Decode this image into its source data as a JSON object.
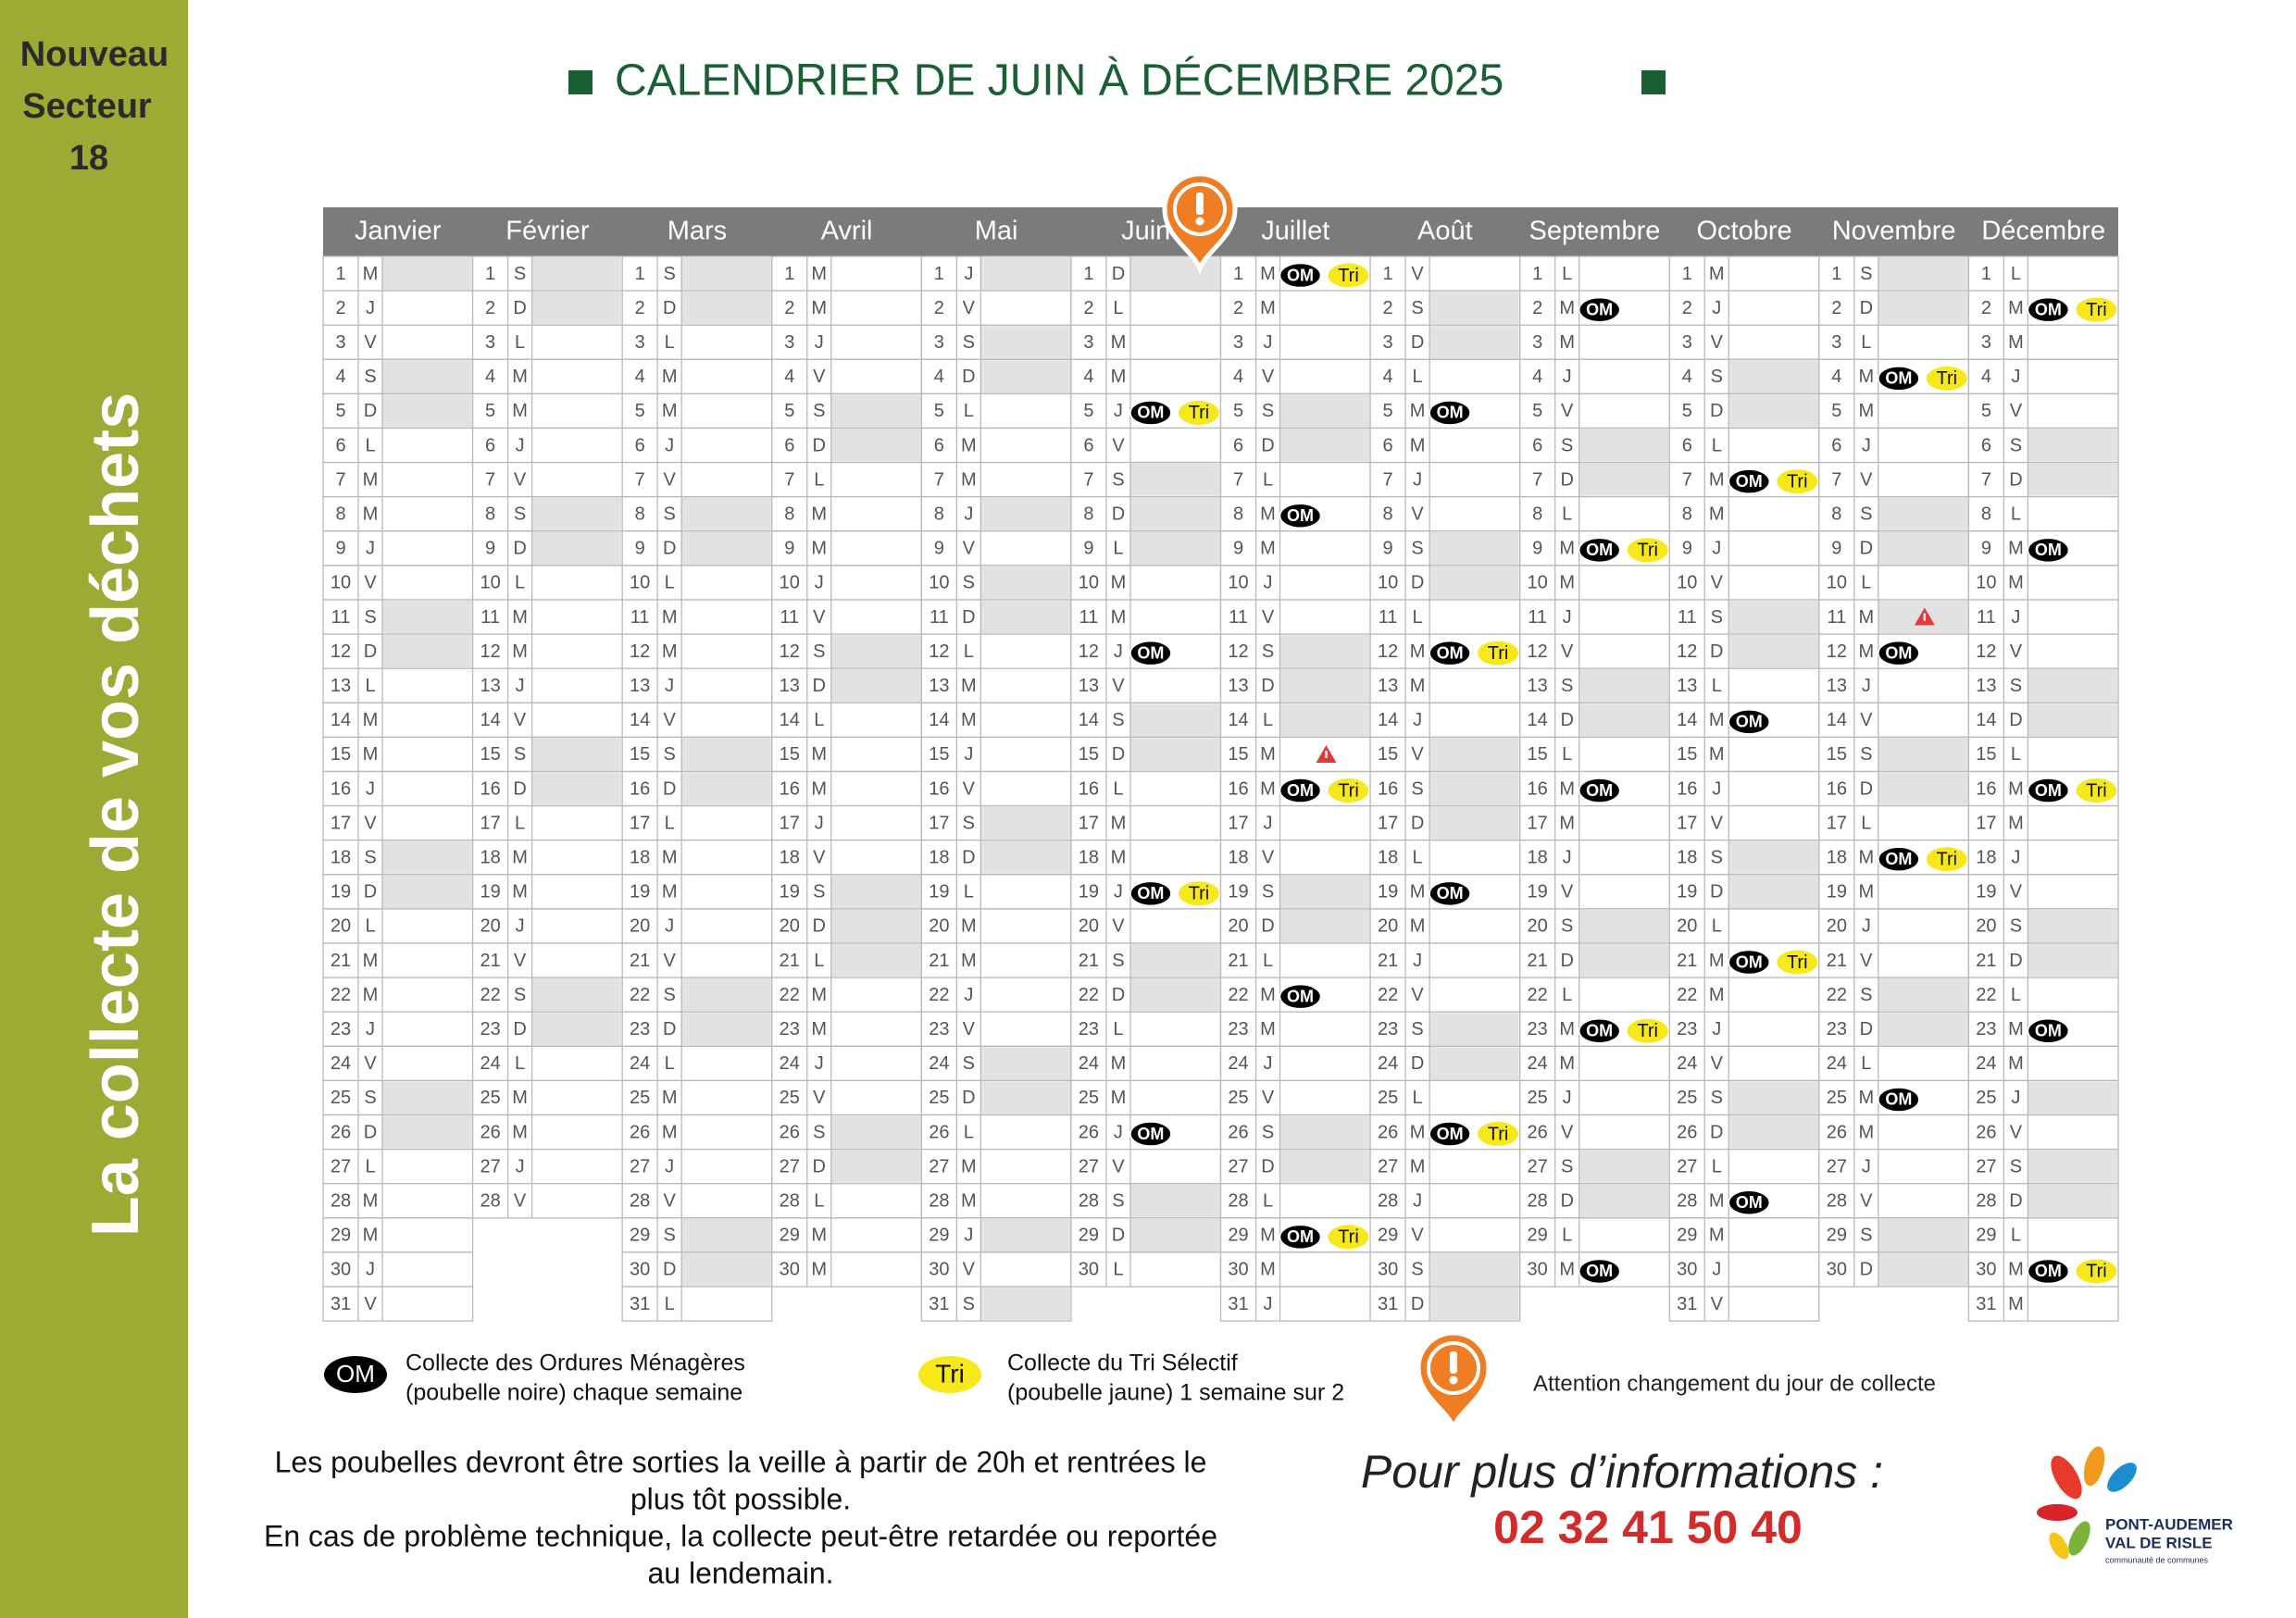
{
  "sidebar": {
    "label_lines": [
      "Nouveau",
      "Secteur",
      "18"
    ],
    "vertical_title": "La collecte de vos déchets"
  },
  "title": "CALENDRIER DE JUIN À DÉCEMBRE 2025",
  "day_numbers": [
    1,
    2,
    3,
    4,
    5,
    6,
    7,
    8,
    9,
    10,
    11,
    12,
    13,
    14,
    15,
    16,
    17,
    18,
    19,
    20,
    21,
    22,
    23,
    24,
    25,
    26,
    27,
    28,
    29,
    30,
    31
  ],
  "months": [
    {
      "name": "Janvier",
      "days": [
        "M",
        "J",
        "V",
        "S",
        "D",
        "L",
        "M",
        "M",
        "J",
        "V",
        "S",
        "D",
        "L",
        "M",
        "M",
        "J",
        "V",
        "S",
        "D",
        "L",
        "M",
        "M",
        "J",
        "V",
        "S",
        "D",
        "L",
        "M",
        "M",
        "J",
        "V"
      ],
      "shaded": [
        1,
        4,
        5,
        11,
        12,
        18,
        19,
        25,
        26
      ],
      "collections": [],
      "alerts": []
    },
    {
      "name": "Février",
      "days": [
        "S",
        "D",
        "L",
        "M",
        "M",
        "J",
        "V",
        "S",
        "D",
        "L",
        "M",
        "M",
        "J",
        "V",
        "S",
        "D",
        "L",
        "M",
        "M",
        "J",
        "V",
        "S",
        "D",
        "L",
        "M",
        "M",
        "J",
        "V"
      ],
      "shaded": [
        1,
        2,
        8,
        9,
        15,
        16,
        22,
        23
      ],
      "collections": [],
      "alerts": []
    },
    {
      "name": "Mars",
      "days": [
        "S",
        "D",
        "L",
        "M",
        "M",
        "J",
        "V",
        "S",
        "D",
        "L",
        "M",
        "M",
        "J",
        "V",
        "S",
        "D",
        "L",
        "M",
        "M",
        "J",
        "V",
        "S",
        "D",
        "L",
        "M",
        "M",
        "J",
        "V",
        "S",
        "D",
        "L"
      ],
      "shaded": [
        1,
        2,
        8,
        9,
        15,
        16,
        22,
        23,
        29,
        30
      ],
      "collections": [],
      "alerts": []
    },
    {
      "name": "Avril",
      "days": [
        "M",
        "M",
        "J",
        "V",
        "S",
        "D",
        "L",
        "M",
        "M",
        "J",
        "V",
        "S",
        "D",
        "L",
        "M",
        "M",
        "J",
        "V",
        "S",
        "D",
        "L",
        "M",
        "M",
        "J",
        "V",
        "S",
        "D",
        "L",
        "M",
        "M"
      ],
      "shaded": [
        5,
        6,
        12,
        13,
        19,
        20,
        21,
        26,
        27
      ],
      "collections": [],
      "alerts": []
    },
    {
      "name": "Mai",
      "days": [
        "J",
        "V",
        "S",
        "D",
        "L",
        "M",
        "M",
        "J",
        "V",
        "S",
        "D",
        "L",
        "M",
        "M",
        "J",
        "V",
        "S",
        "D",
        "L",
        "M",
        "M",
        "J",
        "V",
        "S",
        "D",
        "L",
        "M",
        "M",
        "J",
        "V",
        "S"
      ],
      "shaded": [
        1,
        3,
        4,
        8,
        10,
        11,
        17,
        18,
        24,
        25,
        29,
        31
      ],
      "collections": [],
      "alerts": []
    },
    {
      "name": "Juin",
      "days": [
        "D",
        "L",
        "M",
        "M",
        "J",
        "V",
        "S",
        "D",
        "L",
        "M",
        "M",
        "J",
        "V",
        "S",
        "D",
        "L",
        "M",
        "M",
        "J",
        "V",
        "S",
        "D",
        "L",
        "M",
        "M",
        "J",
        "V",
        "S",
        "D",
        "L"
      ],
      "shaded": [
        1,
        7,
        8,
        9,
        14,
        15,
        21,
        22,
        28,
        29
      ],
      "collections": [
        {
          "day": 5,
          "items": [
            "OM",
            "Tri"
          ]
        },
        {
          "day": 12,
          "items": [
            "OM"
          ]
        },
        {
          "day": 19,
          "items": [
            "OM",
            "Tri"
          ]
        },
        {
          "day": 26,
          "items": [
            "OM"
          ]
        }
      ],
      "alerts": []
    },
    {
      "name": "Juillet",
      "days": [
        "M",
        "M",
        "J",
        "V",
        "S",
        "D",
        "L",
        "M",
        "M",
        "J",
        "V",
        "S",
        "D",
        "L",
        "M",
        "M",
        "J",
        "V",
        "S",
        "D",
        "L",
        "M",
        "M",
        "J",
        "V",
        "S",
        "D",
        "L",
        "M",
        "M",
        "J"
      ],
      "shaded": [
        5,
        6,
        12,
        13,
        14,
        19,
        20,
        26,
        27
      ],
      "collections": [
        {
          "day": 1,
          "items": [
            "OM",
            "Tri"
          ]
        },
        {
          "day": 8,
          "items": [
            "OM"
          ]
        },
        {
          "day": 16,
          "items": [
            "OM",
            "Tri"
          ]
        },
        {
          "day": 22,
          "items": [
            "OM"
          ]
        },
        {
          "day": 29,
          "items": [
            "OM",
            "Tri"
          ]
        }
      ],
      "alerts": [
        15
      ]
    },
    {
      "name": "Août",
      "days": [
        "V",
        "S",
        "D",
        "L",
        "M",
        "M",
        "J",
        "V",
        "S",
        "D",
        "L",
        "M",
        "M",
        "J",
        "V",
        "S",
        "D",
        "L",
        "M",
        "M",
        "J",
        "V",
        "S",
        "D",
        "L",
        "M",
        "M",
        "J",
        "V",
        "S",
        "D"
      ],
      "shaded": [
        2,
        3,
        9,
        10,
        15,
        16,
        17,
        23,
        24,
        30,
        31
      ],
      "collections": [
        {
          "day": 5,
          "items": [
            "OM"
          ]
        },
        {
          "day": 12,
          "items": [
            "OM",
            "Tri"
          ]
        },
        {
          "day": 19,
          "items": [
            "OM"
          ]
        },
        {
          "day": 26,
          "items": [
            "OM",
            "Tri"
          ]
        }
      ],
      "alerts": []
    },
    {
      "name": "Septembre",
      "days": [
        "L",
        "M",
        "M",
        "J",
        "V",
        "S",
        "D",
        "L",
        "M",
        "M",
        "J",
        "V",
        "S",
        "D",
        "L",
        "M",
        "M",
        "J",
        "V",
        "S",
        "D",
        "L",
        "M",
        "M",
        "J",
        "V",
        "S",
        "D",
        "L",
        "M"
      ],
      "shaded": [
        6,
        7,
        13,
        14,
        20,
        21,
        27,
        28
      ],
      "collections": [
        {
          "day": 2,
          "items": [
            "OM"
          ]
        },
        {
          "day": 9,
          "items": [
            "OM",
            "Tri"
          ]
        },
        {
          "day": 16,
          "items": [
            "OM"
          ]
        },
        {
          "day": 23,
          "items": [
            "OM",
            "Tri"
          ]
        },
        {
          "day": 30,
          "items": [
            "OM"
          ]
        }
      ],
      "alerts": []
    },
    {
      "name": "Octobre",
      "days": [
        "M",
        "J",
        "V",
        "S",
        "D",
        "L",
        "M",
        "M",
        "J",
        "V",
        "S",
        "D",
        "L",
        "M",
        "M",
        "J",
        "V",
        "S",
        "D",
        "L",
        "M",
        "M",
        "J",
        "V",
        "S",
        "D",
        "L",
        "M",
        "M",
        "J",
        "V"
      ],
      "shaded": [
        4,
        5,
        11,
        12,
        18,
        19,
        25,
        26
      ],
      "collections": [
        {
          "day": 7,
          "items": [
            "OM",
            "Tri"
          ]
        },
        {
          "day": 14,
          "items": [
            "OM"
          ]
        },
        {
          "day": 21,
          "items": [
            "OM",
            "Tri"
          ]
        },
        {
          "day": 28,
          "items": [
            "OM"
          ]
        }
      ],
      "alerts": []
    },
    {
      "name": "Novembre",
      "days": [
        "S",
        "D",
        "L",
        "M",
        "M",
        "J",
        "V",
        "S",
        "D",
        "L",
        "M",
        "M",
        "J",
        "V",
        "S",
        "D",
        "L",
        "M",
        "M",
        "J",
        "V",
        "S",
        "D",
        "L",
        "M",
        "M",
        "J",
        "V",
        "S",
        "D"
      ],
      "shaded": [
        1,
        2,
        8,
        9,
        11,
        15,
        16,
        22,
        23,
        29,
        30
      ],
      "collections": [
        {
          "day": 4,
          "items": [
            "OM",
            "Tri"
          ]
        },
        {
          "day": 12,
          "items": [
            "OM"
          ]
        },
        {
          "day": 18,
          "items": [
            "OM",
            "Tri"
          ]
        },
        {
          "day": 25,
          "items": [
            "OM"
          ]
        }
      ],
      "alerts": [
        11
      ]
    },
    {
      "name": "Décembre",
      "days": [
        "L",
        "M",
        "M",
        "J",
        "V",
        "S",
        "D",
        "L",
        "M",
        "M",
        "J",
        "V",
        "S",
        "D",
        "L",
        "M",
        "M",
        "J",
        "V",
        "S",
        "D",
        "L",
        "M",
        "M",
        "J",
        "V",
        "S",
        "D",
        "L",
        "M",
        "M"
      ],
      "shaded": [
        6,
        7,
        13,
        14,
        20,
        21,
        25,
        27,
        28
      ],
      "collections": [
        {
          "day": 2,
          "items": [
            "OM",
            "Tri"
          ]
        },
        {
          "day": 9,
          "items": [
            "OM"
          ]
        },
        {
          "day": 16,
          "items": [
            "OM",
            "Tri"
          ]
        },
        {
          "day": 23,
          "items": [
            "OM"
          ]
        },
        {
          "day": 30,
          "items": [
            "OM",
            "Tri"
          ]
        }
      ],
      "alerts": []
    }
  ],
  "legend": {
    "om": {
      "badge": "OM",
      "lines": [
        "Collecte des Ordures Ménagères",
        "(poubelle noire) chaque semaine"
      ]
    },
    "tri": {
      "badge": "Tri",
      "lines": [
        "Collecte du Tri Sélectif",
        "(poubelle jaune) 1 semaine sur 2"
      ]
    },
    "alert": "Attention changement du jour de collecte"
  },
  "notice": [
    "Les poubelles devront être sorties la veille à partir de 20h et rentrées le",
    "plus tôt possible.",
    "En cas de problème technique, la collecte peut-être retardée ou reportée",
    "au lendemain."
  ],
  "info": {
    "label": "Pour plus d’informations :",
    "phone": "02 32 41 50 40"
  },
  "logo": {
    "lines": [
      "PONT-AUDEMER",
      "VAL DE RISLE",
      "communauté de communes"
    ]
  }
}
